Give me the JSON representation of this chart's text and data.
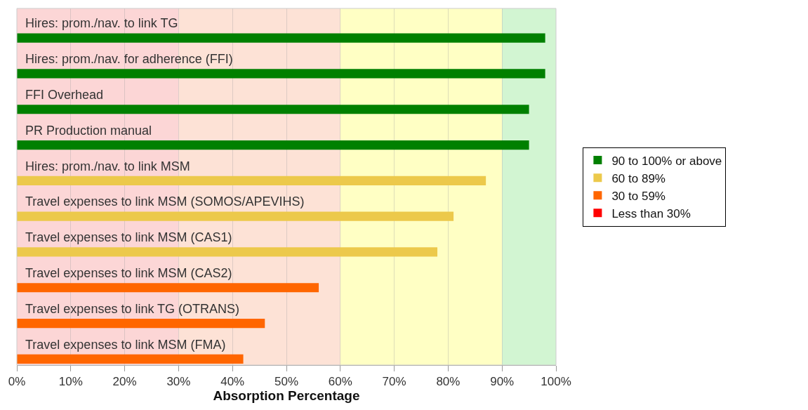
{
  "chart_data": {
    "type": "bar",
    "orientation": "horizontal",
    "xlabel": "Absorption Percentage",
    "categories": [
      "Hires: prom./nav. to link TG",
      "Hires: prom./nav. for adherence (FFI)",
      "FFI Overhead",
      "PR Production manual",
      "Hires: prom./nav. to link MSM",
      "Travel expenses to link MSM (SOMOS/APEVIHS)",
      "Travel expenses to link MSM (CAS1)",
      "Travel expenses to link MSM (CAS2)",
      "Travel expenses to link TG (OTRANS)",
      "Travel expenses to link MSM (FMA)"
    ],
    "series": [
      {
        "name": "90 to 100% or above",
        "color": "#008000",
        "values": [
          98,
          98,
          95,
          95,
          null,
          null,
          null,
          null,
          null,
          null
        ]
      },
      {
        "name": "60 to 89%",
        "color": "#ecc94b",
        "values": [
          null,
          null,
          null,
          null,
          87,
          81,
          78,
          null,
          null,
          null
        ]
      },
      {
        "name": "30 to 59%",
        "color": "#ff6600",
        "values": [
          null,
          null,
          null,
          null,
          null,
          null,
          null,
          56,
          46,
          42
        ]
      },
      {
        "name": "Less than 30%",
        "color": "#ff0000",
        "values": [
          null,
          null,
          null,
          null,
          null,
          null,
          null,
          null,
          null,
          null
        ]
      }
    ],
    "xlim": [
      0,
      100
    ],
    "xticks": [
      {
        "value": 0,
        "label": "0%"
      },
      {
        "value": 10,
        "label": "10%"
      },
      {
        "value": 20,
        "label": "20%"
      },
      {
        "value": 30,
        "label": "30%"
      },
      {
        "value": 40,
        "label": "40%"
      },
      {
        "value": 50,
        "label": "50%"
      },
      {
        "value": 60,
        "label": "60%"
      },
      {
        "value": 70,
        "label": "70%"
      },
      {
        "value": 80,
        "label": "80%"
      },
      {
        "value": 90,
        "label": "90%"
      },
      {
        "value": 100,
        "label": "100%"
      }
    ],
    "bands": [
      {
        "axis": "x",
        "from": 0,
        "to": 30,
        "label": null,
        "color": "#fcd6d6"
      },
      {
        "axis": "x",
        "from": 30,
        "to": 60,
        "label": null,
        "color": "#fde2d6"
      },
      {
        "axis": "x",
        "from": 60,
        "to": 90,
        "label": null,
        "color": "#ffffc4"
      },
      {
        "axis": "x",
        "from": 90,
        "to": 100,
        "label": null,
        "color": "#d2f5d2"
      }
    ],
    "grid": "x",
    "legend": "right"
  }
}
